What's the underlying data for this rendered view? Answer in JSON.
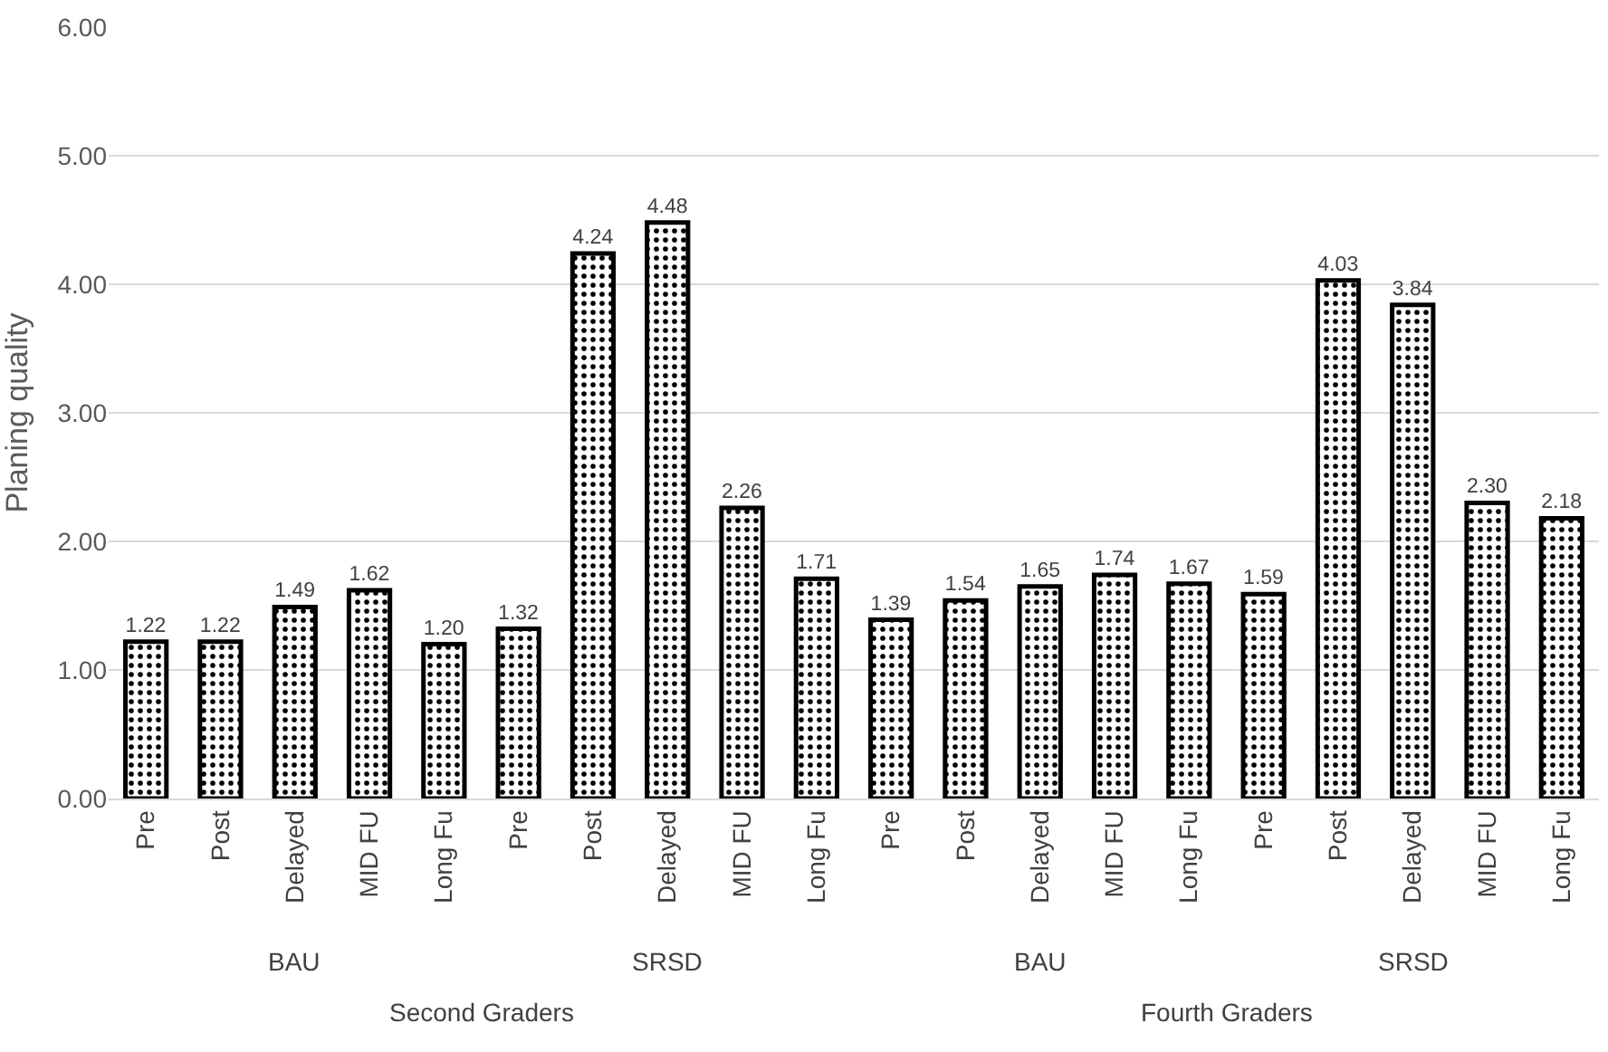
{
  "chart_data": {
    "type": "bar",
    "ylabel": "Planing quality",
    "categories": [
      "Pre",
      "Post",
      "Delayed",
      "MID FU",
      "Long Fu",
      "Pre",
      "Post",
      "Delayed",
      "MID FU",
      "Long Fu",
      "Pre",
      "Post",
      "Delayed",
      "MID FU",
      "Long Fu",
      "Pre",
      "Post",
      "Delayed",
      "MID FU",
      "Long Fu"
    ],
    "values": [
      1.22,
      1.22,
      1.49,
      1.62,
      1.2,
      1.32,
      4.24,
      4.48,
      2.26,
      1.71,
      1.39,
      1.54,
      1.65,
      1.74,
      1.67,
      1.59,
      4.03,
      3.84,
      2.3,
      2.18
    ],
    "value_labels": [
      "1.22",
      "1.22",
      "1.49",
      "1.62",
      "1.20",
      "1.32",
      "4.24",
      "4.48",
      "2.26",
      "1.71",
      "1.39",
      "1.54",
      "1.65",
      "1.74",
      "1.67",
      "1.59",
      "4.03",
      "3.84",
      "2.30",
      "2.18"
    ],
    "color": "#000000",
    "ylim": [
      0,
      6
    ],
    "yticks": [
      {
        "value": 0,
        "label": "0.00"
      },
      {
        "value": 1,
        "label": "1.00"
      },
      {
        "value": 2,
        "label": "2.00"
      },
      {
        "value": 3,
        "label": "3.00"
      },
      {
        "value": 4,
        "label": "4.00"
      },
      {
        "value": 5,
        "label": "5.00"
      },
      {
        "value": 6,
        "label": "6.00"
      }
    ],
    "grid": "y",
    "annotations": [
      "BAU",
      "SRSD",
      "BAU",
      "SRSD",
      "Second Graders",
      "Fourth Graders"
    ]
  }
}
